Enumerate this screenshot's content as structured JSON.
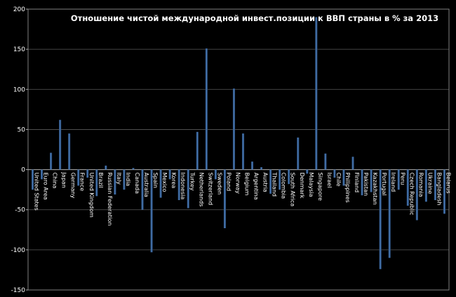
{
  "chart_data": {
    "type": "bar",
    "title": "Отношение чистой международной инвест.позиции к ВВП страны в % за 2013",
    "xlabel": "",
    "ylabel": "",
    "ylim": [
      -150,
      200
    ],
    "yticks": [
      -150,
      -100,
      -50,
      0,
      50,
      100,
      150,
      200
    ],
    "grid": true,
    "legend": "none",
    "colors": {
      "background": "#000000",
      "bar": "#4f81bd",
      "bar_dark": "#1f3d66",
      "grid": "#5a5a5a",
      "text": "#ffffff"
    },
    "categories": [
      "United States",
      "Euro Area",
      "China",
      "Japan",
      "Germany",
      "France",
      "United Kingdom",
      "Brazil",
      "Russian Federation",
      "Italy",
      "India",
      "Canada",
      "Australia",
      "Spain",
      "Mexico",
      "Korea",
      "Indonesia",
      "Turkey",
      "Netherlands",
      "Switzerland",
      "Sweden",
      "Poland",
      "Norway",
      "Belgium",
      "Argentina",
      "Austria",
      "Thailand",
      "Colombia",
      "South Africa",
      "Denmark",
      "Malaysia",
      "Singapore",
      "Israel",
      "Chile",
      "Philippines",
      "Finland",
      "Pakistan",
      "Kazakhstan",
      "Portugal",
      "Ireland",
      "Peru",
      "Czech Republic",
      "Romania",
      "Ukraine",
      "Bangladesh",
      "Belarus"
    ],
    "values": [
      -25,
      -12,
      21,
      62,
      45,
      -20,
      -10,
      -33,
      5,
      -31,
      -25,
      2,
      -50,
      -103,
      -35,
      -12,
      -38,
      -48,
      47,
      151,
      -12,
      -73,
      101,
      45,
      10,
      3,
      -30,
      -25,
      -18,
      40,
      -5,
      190,
      20,
      -10,
      -20,
      16,
      -32,
      -28,
      -124,
      -110,
      -25,
      -45,
      -63,
      -40,
      -38,
      -55
    ]
  }
}
